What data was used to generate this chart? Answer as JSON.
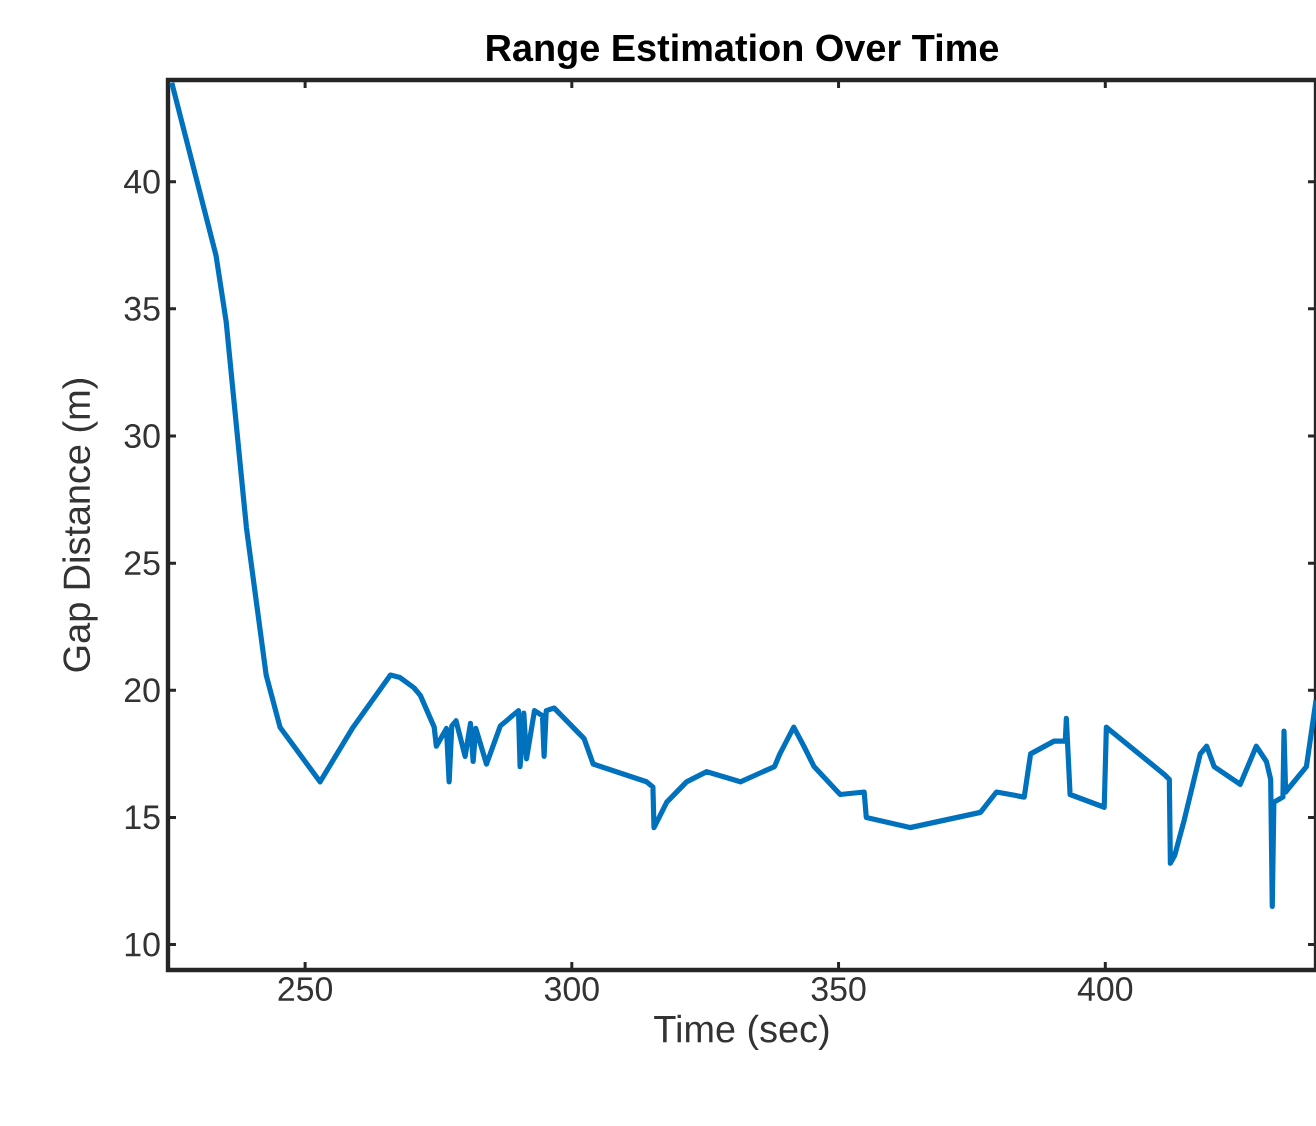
{
  "chart_data": {
    "type": "line",
    "title": "Range Estimation Over Time",
    "xlabel": "Time (sec)",
    "ylabel": "Gap Distance (m)",
    "xlim": [
      224.3,
      439.5
    ],
    "ylim": [
      9,
      44
    ],
    "xticks": [
      250,
      300,
      350,
      400
    ],
    "yticks": [
      10,
      15,
      20,
      25,
      30,
      35,
      40
    ],
    "grid": false,
    "series": [
      {
        "color": "#0072bd",
        "x": [
          225,
          233.3,
          235.2,
          239,
          242.7,
          245.3,
          252.8,
          259,
          266,
          267.8,
          270.4,
          271.6,
          274.2,
          274.6,
          276.5,
          277,
          277.5,
          278.3,
          280,
          281,
          281.5,
          282,
          284,
          286.6,
          290,
          290.3,
          291,
          291.5,
          293,
          294.5,
          294.8,
          295.2,
          296.7,
          302.3,
          304,
          314,
          315.2,
          315.4,
          317.8,
          321.5,
          325.3,
          331.6,
          338,
          339,
          341.6,
          343.5,
          345.4,
          350.3,
          354.8,
          355.2,
          363.4,
          376.6,
          379.6,
          384.8,
          386,
          390.4,
          392.5,
          392.7,
          393.4,
          399.8,
          400.2,
          411,
          412,
          412.2,
          413,
          414.8,
          417.8,
          419,
          420.4,
          425.3,
          428.3,
          430.2,
          431,
          431.3,
          431.6,
          433.3,
          433.5,
          433.8,
          437.7,
          439.5
        ],
        "values": [
          43.9,
          37.1,
          34.5,
          26.4,
          20.6,
          18.55,
          16.4,
          18.55,
          20.6,
          20.5,
          20.1,
          19.8,
          18.55,
          17.8,
          18.5,
          16.4,
          18.6,
          18.8,
          17.4,
          18.7,
          17.2,
          18.5,
          17.1,
          18.6,
          19.2,
          17.0,
          19.1,
          17.3,
          19.2,
          19.0,
          17.4,
          19.2,
          19.3,
          18.1,
          17.1,
          16.4,
          16.2,
          14.6,
          15.6,
          16.4,
          16.8,
          16.4,
          17.0,
          17.5,
          18.55,
          17.8,
          17.0,
          15.9,
          16.0,
          15.0,
          14.6,
          15.2,
          16.0,
          15.8,
          17.5,
          18.0,
          18.0,
          18.9,
          15.9,
          15.4,
          18.55,
          16.7,
          16.5,
          13.2,
          13.5,
          14.9,
          17.5,
          17.8,
          17.0,
          16.3,
          17.8,
          17.2,
          16.5,
          11.5,
          15.6,
          15.8,
          18.4,
          16.0,
          17.0,
          19.6
        ]
      }
    ]
  }
}
